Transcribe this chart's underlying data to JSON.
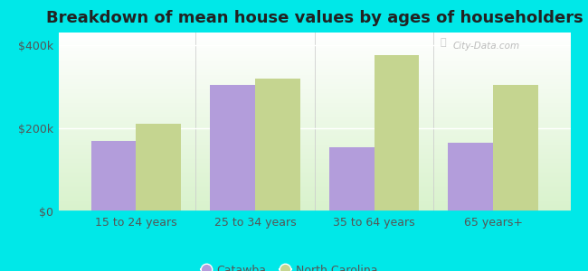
{
  "title": "Breakdown of mean house values by ages of householders",
  "categories": [
    "15 to 24 years",
    "25 to 34 years",
    "35 to 64 years",
    "65 years+"
  ],
  "catawba_values": [
    170000,
    305000,
    155000,
    165000
  ],
  "nc_values": [
    210000,
    320000,
    375000,
    305000
  ],
  "catawba_color": "#b39ddb",
  "nc_color": "#c5d590",
  "background_outer": "#00e8e8",
  "yticks": [
    0,
    200000,
    400000
  ],
  "ytick_labels": [
    "$0",
    "$200k",
    "$400k"
  ],
  "ylim": [
    0,
    430000
  ],
  "bar_width": 0.38,
  "legend_catawba": "Catawba",
  "legend_nc": "North Carolina",
  "title_fontsize": 13,
  "tick_fontsize": 9,
  "legend_fontsize": 9,
  "watermark": "City-Data.com"
}
